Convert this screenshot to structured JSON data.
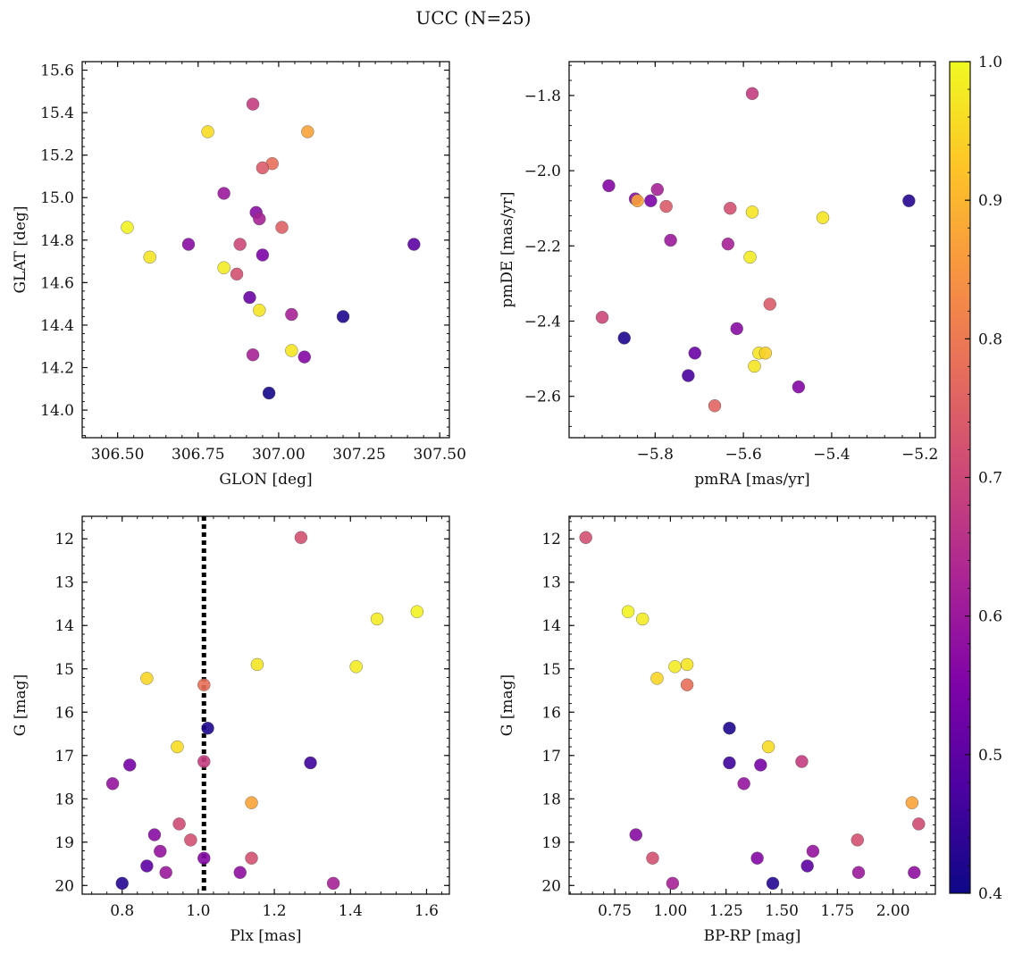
{
  "figure": {
    "title": "UCC (N=25)"
  },
  "colorbar": {
    "label": "",
    "min": 0.4,
    "max": 1.0,
    "ticks": [
      0.4,
      0.5,
      0.6,
      0.7,
      0.8,
      0.9,
      1.0
    ],
    "tick_labels": [
      "0.4",
      "0.5",
      "0.6",
      "0.7",
      "0.8",
      "0.9",
      "1.0"
    ],
    "colormap": "plasma"
  },
  "chart_data": [
    {
      "type": "scatter",
      "title": "",
      "xlabel": "GLON [deg]",
      "ylabel": "GLAT [deg]",
      "xlim": [
        306.39,
        307.53
      ],
      "ylim": [
        13.87,
        15.64
      ],
      "y_inverted": false,
      "xticks": [
        306.5,
        306.75,
        307.0,
        307.25,
        307.5
      ],
      "xtick_labels": [
        "306.50",
        "306.75",
        "307.00",
        "307.25",
        "307.50"
      ],
      "yticks": [
        14.0,
        14.2,
        14.4,
        14.6,
        14.8,
        15.0,
        15.2,
        15.4,
        15.6
      ],
      "ytick_labels": [
        "14.0",
        "14.2",
        "14.4",
        "14.6",
        "14.8",
        "15.0",
        "15.2",
        "15.4",
        "15.6"
      ],
      "points": [
        {
          "x": 306.92,
          "y": 15.44,
          "c": 0.68
        },
        {
          "x": 306.78,
          "y": 15.31,
          "c": 0.96
        },
        {
          "x": 307.09,
          "y": 15.31,
          "c": 0.87
        },
        {
          "x": 306.98,
          "y": 15.16,
          "c": 0.78
        },
        {
          "x": 306.95,
          "y": 15.14,
          "c": 0.74
        },
        {
          "x": 306.83,
          "y": 15.02,
          "c": 0.6
        },
        {
          "x": 306.93,
          "y": 14.93,
          "c": 0.57
        },
        {
          "x": 306.94,
          "y": 14.9,
          "c": 0.62
        },
        {
          "x": 307.01,
          "y": 14.86,
          "c": 0.75
        },
        {
          "x": 306.53,
          "y": 14.86,
          "c": 0.99
        },
        {
          "x": 306.72,
          "y": 14.78,
          "c": 0.57
        },
        {
          "x": 306.88,
          "y": 14.78,
          "c": 0.7
        },
        {
          "x": 307.42,
          "y": 14.78,
          "c": 0.5
        },
        {
          "x": 306.6,
          "y": 14.72,
          "c": 0.97
        },
        {
          "x": 306.95,
          "y": 14.73,
          "c": 0.55
        },
        {
          "x": 306.83,
          "y": 14.67,
          "c": 0.98
        },
        {
          "x": 306.87,
          "y": 14.64,
          "c": 0.72
        },
        {
          "x": 306.91,
          "y": 14.53,
          "c": 0.52
        },
        {
          "x": 306.94,
          "y": 14.47,
          "c": 0.97
        },
        {
          "x": 307.04,
          "y": 14.45,
          "c": 0.62
        },
        {
          "x": 307.2,
          "y": 14.44,
          "c": 0.42
        },
        {
          "x": 307.04,
          "y": 14.28,
          "c": 0.97
        },
        {
          "x": 306.92,
          "y": 14.26,
          "c": 0.62
        },
        {
          "x": 307.08,
          "y": 14.25,
          "c": 0.56
        },
        {
          "x": 306.97,
          "y": 14.08,
          "c": 0.41
        }
      ]
    },
    {
      "type": "scatter",
      "title": "",
      "xlabel": "pmRA [mas/yr]",
      "ylabel": "pmDE [mas/yr]",
      "xlim": [
        -5.995,
        -5.165
      ],
      "ylim": [
        -2.71,
        -1.71
      ],
      "y_inverted": false,
      "xticks": [
        -5.8,
        -5.6,
        -5.4,
        -5.2
      ],
      "xtick_labels": [
        "−5.8",
        "−5.6",
        "−5.4",
        "−5.2"
      ],
      "yticks": [
        -2.6,
        -2.4,
        -2.2,
        -2.0,
        -1.8
      ],
      "ytick_labels": [
        "−2.6",
        "−2.4",
        "−2.2",
        "−2.0",
        "−1.8"
      ],
      "points": [
        {
          "x": -5.58,
          "y": -1.795,
          "c": 0.68
        },
        {
          "x": -5.905,
          "y": -2.04,
          "c": 0.56
        },
        {
          "x": -5.845,
          "y": -2.075,
          "c": 0.57
        },
        {
          "x": -5.84,
          "y": -2.08,
          "c": 0.87
        },
        {
          "x": -5.81,
          "y": -2.08,
          "c": 0.55
        },
        {
          "x": -5.795,
          "y": -2.05,
          "c": 0.62
        },
        {
          "x": -5.775,
          "y": -2.095,
          "c": 0.74
        },
        {
          "x": -5.63,
          "y": -2.1,
          "c": 0.72
        },
        {
          "x": -5.58,
          "y": -2.11,
          "c": 0.97
        },
        {
          "x": -5.42,
          "y": -2.125,
          "c": 0.97
        },
        {
          "x": -5.225,
          "y": -2.08,
          "c": 0.43
        },
        {
          "x": -5.765,
          "y": -2.185,
          "c": 0.6
        },
        {
          "x": -5.635,
          "y": -2.195,
          "c": 0.62
        },
        {
          "x": -5.585,
          "y": -2.23,
          "c": 0.98
        },
        {
          "x": -5.54,
          "y": -2.355,
          "c": 0.74
        },
        {
          "x": -5.92,
          "y": -2.39,
          "c": 0.7
        },
        {
          "x": -5.615,
          "y": -2.42,
          "c": 0.57
        },
        {
          "x": -5.87,
          "y": -2.445,
          "c": 0.42
        },
        {
          "x": -5.71,
          "y": -2.485,
          "c": 0.52
        },
        {
          "x": -5.565,
          "y": -2.485,
          "c": 0.97
        },
        {
          "x": -5.55,
          "y": -2.485,
          "c": 0.94
        },
        {
          "x": -5.575,
          "y": -2.52,
          "c": 0.97
        },
        {
          "x": -5.725,
          "y": -2.545,
          "c": 0.47
        },
        {
          "x": -5.475,
          "y": -2.575,
          "c": 0.56
        },
        {
          "x": -5.665,
          "y": -2.625,
          "c": 0.76
        }
      ]
    },
    {
      "type": "scatter",
      "title": "",
      "xlabel": "Plx [mas]",
      "ylabel": "G [mag]",
      "xlim": [
        0.695,
        1.66
      ],
      "ylim": [
        11.48,
        20.2
      ],
      "y_inverted": true,
      "xticks": [
        0.8,
        1.0,
        1.2,
        1.4,
        1.6
      ],
      "xtick_labels": [
        "0.8",
        "1.0",
        "1.2",
        "1.4",
        "1.6"
      ],
      "yticks": [
        12,
        13,
        14,
        15,
        16,
        17,
        18,
        19,
        20
      ],
      "ytick_labels": [
        "12",
        "13",
        "14",
        "15",
        "16",
        "17",
        "18",
        "19",
        "20"
      ],
      "vline": {
        "x": 1.015,
        "style": "dotted",
        "color": "#000000"
      },
      "points": [
        {
          "x": 1.27,
          "y": 11.97,
          "c": 0.72
        },
        {
          "x": 1.575,
          "y": 13.68,
          "c": 0.99
        },
        {
          "x": 1.47,
          "y": 13.85,
          "c": 0.98
        },
        {
          "x": 1.155,
          "y": 14.9,
          "c": 0.97
        },
        {
          "x": 1.415,
          "y": 14.95,
          "c": 0.98
        },
        {
          "x": 0.865,
          "y": 15.22,
          "c": 0.95
        },
        {
          "x": 1.015,
          "y": 15.37,
          "c": 0.78
        },
        {
          "x": 1.025,
          "y": 16.37,
          "c": 0.42
        },
        {
          "x": 0.945,
          "y": 16.8,
          "c": 0.96
        },
        {
          "x": 1.015,
          "y": 17.14,
          "c": 0.68
        },
        {
          "x": 1.295,
          "y": 17.17,
          "c": 0.46
        },
        {
          "x": 0.82,
          "y": 17.22,
          "c": 0.54
        },
        {
          "x": 0.775,
          "y": 17.65,
          "c": 0.59
        },
        {
          "x": 1.14,
          "y": 18.09,
          "c": 0.87
        },
        {
          "x": 0.95,
          "y": 18.58,
          "c": 0.71
        },
        {
          "x": 0.885,
          "y": 18.83,
          "c": 0.57
        },
        {
          "x": 0.98,
          "y": 18.95,
          "c": 0.72
        },
        {
          "x": 0.9,
          "y": 19.21,
          "c": 0.59
        },
        {
          "x": 1.015,
          "y": 19.37,
          "c": 0.56
        },
        {
          "x": 1.14,
          "y": 19.37,
          "c": 0.72
        },
        {
          "x": 0.865,
          "y": 19.55,
          "c": 0.5
        },
        {
          "x": 0.915,
          "y": 19.7,
          "c": 0.6
        },
        {
          "x": 1.11,
          "y": 19.7,
          "c": 0.58
        },
        {
          "x": 0.8,
          "y": 19.95,
          "c": 0.43
        },
        {
          "x": 1.355,
          "y": 19.95,
          "c": 0.62
        }
      ]
    },
    {
      "type": "scatter",
      "title": "",
      "xlabel": "BP-RP [mag]",
      "ylabel": "G [mag]",
      "xlim": [
        0.545,
        2.19
      ],
      "ylim": [
        11.48,
        20.2
      ],
      "y_inverted": true,
      "xticks": [
        0.75,
        1.0,
        1.25,
        1.5,
        1.75,
        2.0
      ],
      "xtick_labels": [
        "0.75",
        "1.00",
        "1.25",
        "1.50",
        "1.75",
        "2.00"
      ],
      "yticks": [
        12,
        13,
        14,
        15,
        16,
        17,
        18,
        19,
        20
      ],
      "ytick_labels": [
        "12",
        "13",
        "14",
        "15",
        "16",
        "17",
        "18",
        "19",
        "20"
      ],
      "points": [
        {
          "x": 0.62,
          "y": 11.97,
          "c": 0.72
        },
        {
          "x": 0.81,
          "y": 13.68,
          "c": 0.99
        },
        {
          "x": 0.875,
          "y": 13.85,
          "c": 0.98
        },
        {
          "x": 1.075,
          "y": 14.9,
          "c": 0.97
        },
        {
          "x": 1.02,
          "y": 14.95,
          "c": 0.98
        },
        {
          "x": 0.94,
          "y": 15.22,
          "c": 0.95
        },
        {
          "x": 1.075,
          "y": 15.37,
          "c": 0.78
        },
        {
          "x": 1.265,
          "y": 16.37,
          "c": 0.42
        },
        {
          "x": 1.44,
          "y": 16.8,
          "c": 0.96
        },
        {
          "x": 1.59,
          "y": 17.14,
          "c": 0.68
        },
        {
          "x": 1.265,
          "y": 17.17,
          "c": 0.46
        },
        {
          "x": 1.405,
          "y": 17.22,
          "c": 0.54
        },
        {
          "x": 1.33,
          "y": 17.65,
          "c": 0.59
        },
        {
          "x": 2.085,
          "y": 18.09,
          "c": 0.87
        },
        {
          "x": 2.115,
          "y": 18.58,
          "c": 0.71
        },
        {
          "x": 0.845,
          "y": 18.83,
          "c": 0.57
        },
        {
          "x": 1.84,
          "y": 18.95,
          "c": 0.72
        },
        {
          "x": 1.64,
          "y": 19.21,
          "c": 0.59
        },
        {
          "x": 1.39,
          "y": 19.37,
          "c": 0.56
        },
        {
          "x": 0.92,
          "y": 19.37,
          "c": 0.72
        },
        {
          "x": 1.615,
          "y": 19.55,
          "c": 0.5
        },
        {
          "x": 1.845,
          "y": 19.7,
          "c": 0.6
        },
        {
          "x": 2.095,
          "y": 19.7,
          "c": 0.58
        },
        {
          "x": 1.46,
          "y": 19.95,
          "c": 0.43
        },
        {
          "x": 1.01,
          "y": 19.95,
          "c": 0.62
        }
      ]
    }
  ]
}
